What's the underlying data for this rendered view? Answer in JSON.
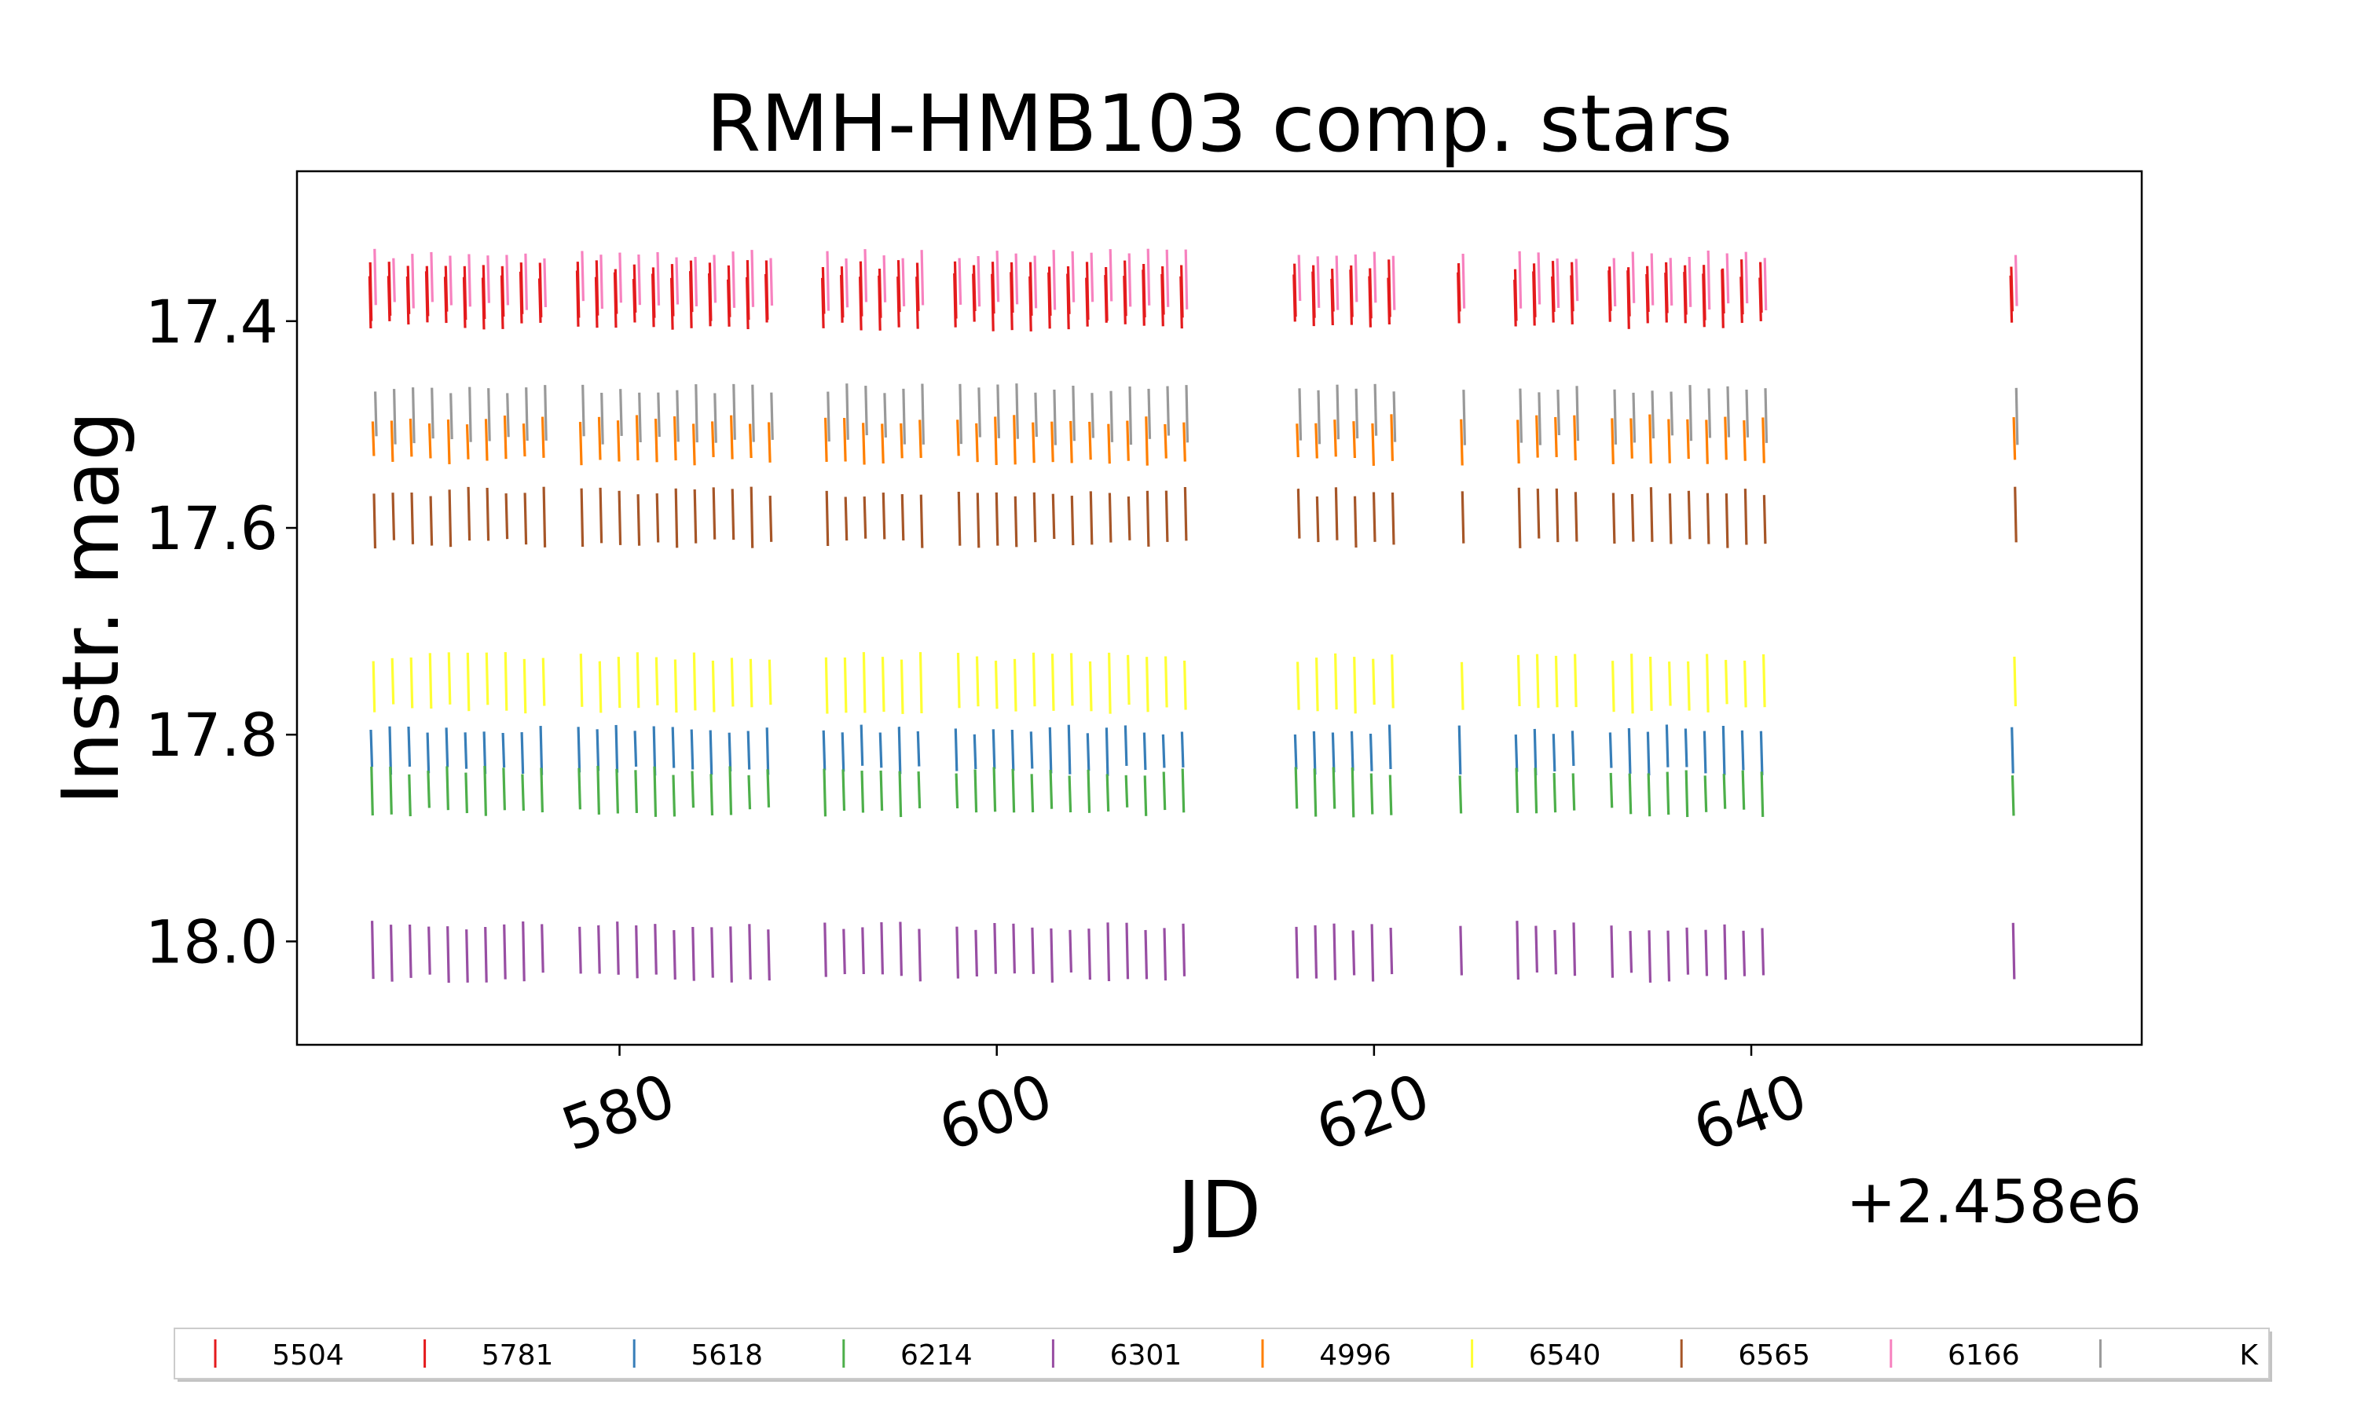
{
  "chart_data": {
    "type": "scatter",
    "title": "RMH-HMB103 comp. stars",
    "xlabel": "JD",
    "ylabel": "Instr. mag",
    "x_offset_label": "+2.458e6",
    "xlim": [
      562.9,
      660.7
    ],
    "ylim": [
      18.1,
      17.255
    ],
    "y_inverted": true,
    "xticks": [
      580,
      600,
      620,
      640
    ],
    "xtick_labels": [
      "580",
      "600",
      "620",
      "640"
    ],
    "xtick_rotation_deg": -20,
    "yticks": [
      17.4,
      17.6,
      17.8,
      18.0
    ],
    "ytick_labels": [
      "17.4",
      "17.6",
      "17.8",
      "18.0"
    ],
    "grid": false,
    "marker": "vertical line",
    "legend": {
      "placement": "bottom",
      "columns": 10,
      "entries": [
        {
          "label": "5504",
          "color": "#e41a1c"
        },
        {
          "label": "5781",
          "color": "#e41a1c"
        },
        {
          "label": "5618",
          "color": "#377eb8"
        },
        {
          "label": "6214",
          "color": "#4daf4a"
        },
        {
          "label": "6301",
          "color": "#984ea3"
        },
        {
          "label": "4996",
          "color": "#ff7f00"
        },
        {
          "label": "6540",
          "color": "#ffff33"
        },
        {
          "label": "6565",
          "color": "#a65628"
        },
        {
          "label": "6166",
          "color": "#f781bf"
        },
        {
          "label": "K",
          "color": "#999999"
        }
      ]
    },
    "nights": [
      566.9,
      567.9,
      568.9,
      569.9,
      570.9,
      571.9,
      572.9,
      573.9,
      574.9,
      575.9,
      577.9,
      578.9,
      579.9,
      580.9,
      581.9,
      582.9,
      583.9,
      584.9,
      585.9,
      586.9,
      587.9,
      590.9,
      591.9,
      592.9,
      593.9,
      594.9,
      595.9,
      597.9,
      598.9,
      599.9,
      600.9,
      601.9,
      602.9,
      603.9,
      604.9,
      605.9,
      606.9,
      607.9,
      608.9,
      609.9,
      615.9,
      616.9,
      617.9,
      618.9,
      619.9,
      620.9,
      624.6,
      627.6,
      628.6,
      629.6,
      630.6,
      632.6,
      633.6,
      634.6,
      635.6,
      636.6,
      637.6,
      638.6,
      639.6,
      640.6,
      653.9
    ],
    "series": [
      {
        "name": "5504",
        "color": "#e41a1c",
        "y_range": [
          17.35,
          17.41
        ]
      },
      {
        "name": "5781",
        "color": "#e41a1c",
        "y_range": [
          17.34,
          17.4
        ]
      },
      {
        "name": "5618",
        "color": "#377eb8",
        "y_range": [
          17.79,
          17.84
        ]
      },
      {
        "name": "6214",
        "color": "#4daf4a",
        "y_range": [
          17.83,
          17.88
        ]
      },
      {
        "name": "6301",
        "color": "#984ea3",
        "y_range": [
          17.98,
          18.04
        ]
      },
      {
        "name": "4996",
        "color": "#ff7f00",
        "y_range": [
          17.49,
          17.54
        ]
      },
      {
        "name": "6540",
        "color": "#ffff33",
        "y_range": [
          17.72,
          17.78
        ]
      },
      {
        "name": "6565",
        "color": "#a65628",
        "y_range": [
          17.56,
          17.62
        ]
      },
      {
        "name": "6166",
        "color": "#f781bf",
        "y_range": [
          17.33,
          17.39
        ]
      },
      {
        "name": "K",
        "color": "#999999",
        "y_range": [
          17.46,
          17.52
        ]
      }
    ]
  }
}
